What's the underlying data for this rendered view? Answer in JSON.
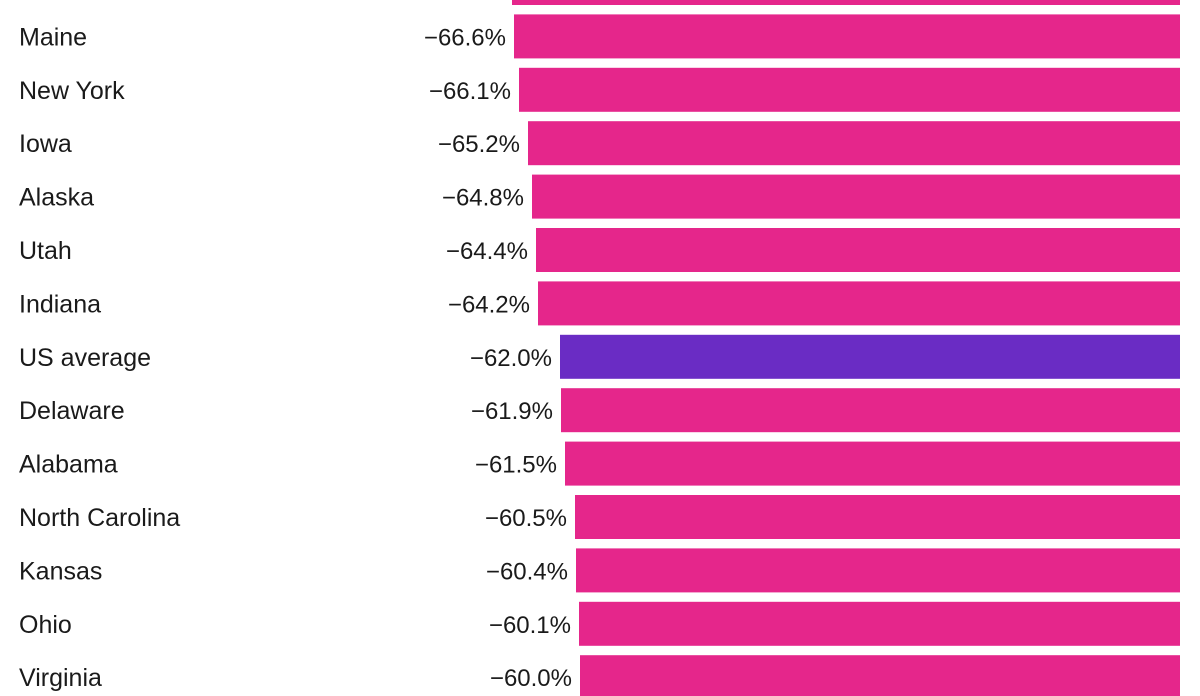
{
  "chart_data": {
    "type": "bar",
    "orientation": "horizontal",
    "title": "",
    "xlabel": "",
    "ylabel": "",
    "grid": false,
    "legend": "none",
    "xlim": [
      -100,
      0
    ],
    "categories": [
      "",
      "Maine",
      "New York",
      "Iowa",
      "Alaska",
      "Utah",
      "Indiana",
      "US average",
      "Delaware",
      "Alabama",
      "North Carolina",
      "Kansas",
      "Ohio",
      "Virginia"
    ],
    "values": [
      -66.8,
      -66.6,
      -66.1,
      -65.2,
      -64.8,
      -64.4,
      -64.2,
      -62.0,
      -61.9,
      -61.5,
      -60.5,
      -60.4,
      -60.1,
      -60.0
    ],
    "value_labels": [
      "",
      "−66.6%",
      "−66.1%",
      "−65.2%",
      "−64.8%",
      "−64.4%",
      "−64.2%",
      "−62.0%",
      "−61.9%",
      "−61.5%",
      "−60.5%",
      "−60.4%",
      "−60.1%",
      "−60.0%"
    ],
    "highlight": "US average",
    "colors": {
      "bar": "#e5268b",
      "highlight": "#6a2cc4",
      "text": "#1a1a1a",
      "background": "#ffffff"
    }
  }
}
